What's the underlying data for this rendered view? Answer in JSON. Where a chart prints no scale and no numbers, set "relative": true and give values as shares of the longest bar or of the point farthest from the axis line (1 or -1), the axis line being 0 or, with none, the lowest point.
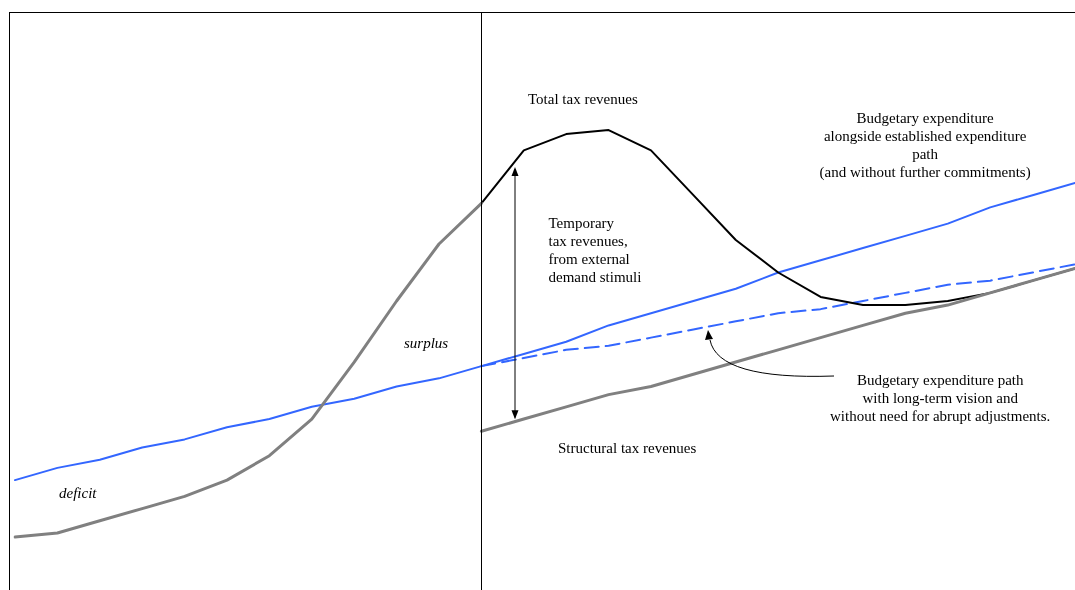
{
  "chart_data": {
    "type": "line",
    "relative": true,
    "legend": false,
    "grid": false,
    "tick_labels": false,
    "marker": "none",
    "categories": [
      null,
      null,
      null,
      null,
      null,
      null,
      null,
      null,
      null,
      null,
      null,
      null,
      null,
      null,
      null,
      null,
      null,
      null,
      null,
      null,
      null,
      null,
      null,
      null,
      null,
      null
    ],
    "series": [
      {
        "color": "#808080",
        "values": [
          0,
          0.01,
          0.04,
          0.07,
          0.1,
          0.14,
          0.2,
          0.29,
          0.43,
          0.58,
          0.72,
          0.82,
          null,
          null,
          null,
          null,
          null,
          null,
          null,
          null,
          null,
          null,
          null,
          null,
          null,
          null
        ]
      },
      {
        "color": "#808080",
        "values": [
          null,
          null,
          null,
          null,
          null,
          null,
          null,
          null,
          null,
          null,
          null,
          0.26,
          0.29,
          0.32,
          0.35,
          0.37,
          0.4,
          0.43,
          0.46,
          0.49,
          0.52,
          0.55,
          0.57,
          0.6,
          0.63,
          0.66
        ]
      },
      {
        "color": "#000000",
        "values": [
          null,
          null,
          null,
          null,
          null,
          null,
          null,
          null,
          null,
          null,
          null,
          0.82,
          0.95,
          0.99,
          1,
          0.95,
          0.84,
          0.73,
          0.65,
          0.59,
          0.57,
          0.57,
          0.58,
          0.6,
          0.63,
          0.66
        ]
      },
      {
        "color": "#3366ff",
        "values": [
          0.14,
          0.17,
          0.19,
          0.22,
          0.24,
          0.27,
          0.29,
          0.32,
          0.34,
          0.37,
          0.39,
          0.42,
          0.45,
          0.48,
          0.52,
          0.55,
          0.58,
          0.61,
          0.65,
          0.68,
          0.71,
          0.74,
          0.77,
          0.81,
          0.84,
          0.87
        ]
      },
      {
        "color": "#3366ff",
        "line_style": "dashed",
        "values": [
          null,
          null,
          null,
          null,
          null,
          null,
          null,
          null,
          null,
          null,
          null,
          0.42,
          0.44,
          0.46,
          0.47,
          0.49,
          0.51,
          0.53,
          0.55,
          0.56,
          0.58,
          0.6,
          0.62,
          0.63,
          0.65,
          0.67
        ]
      }
    ],
    "annotations": [
      "Total tax revenues",
      "Budgetary expenditure\nalongside established expenditure\npath\n(and without further commitments)",
      "Temporary\ntax revenues,\nfrom external\ndemand stimuli",
      "surplus",
      "deficit",
      "Budgetary expenditure path\nwith long-term vision and\nwithout need for abrupt adjustments.",
      "Structural tax revenues"
    ]
  }
}
